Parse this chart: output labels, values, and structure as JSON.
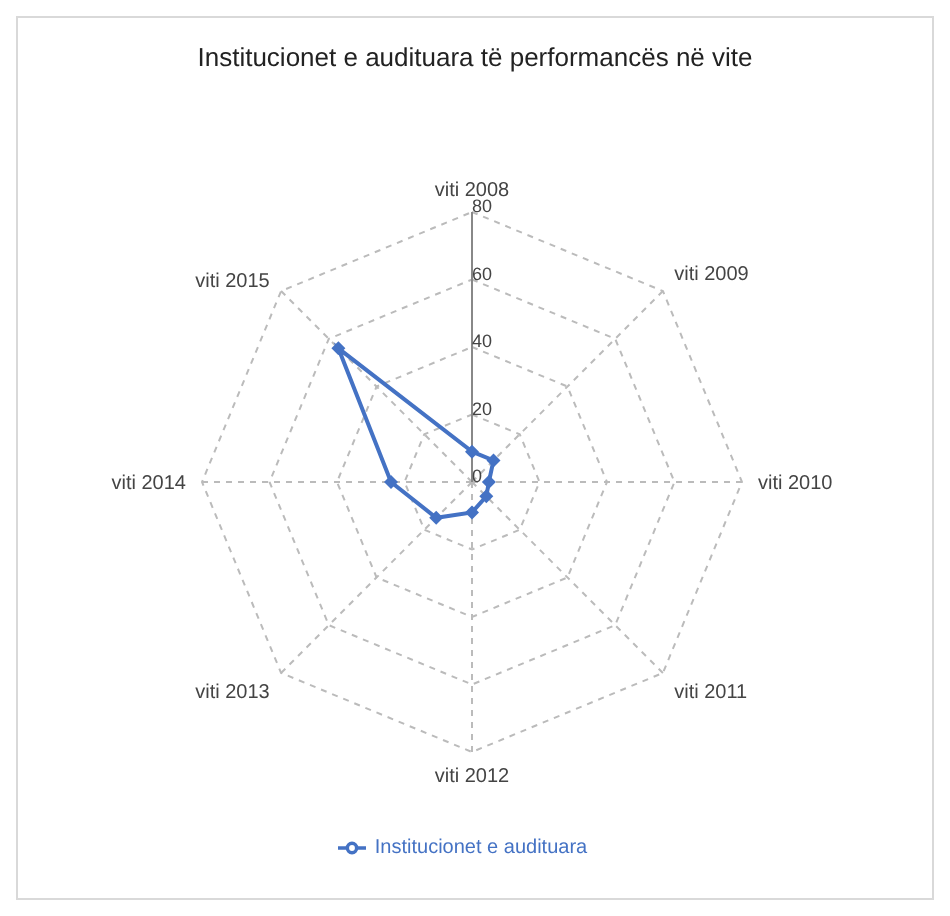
{
  "chart_data": {
    "type": "radar",
    "title": "Institucionet e audituara të performancës në vite",
    "categories": [
      "viti 2008",
      "viti 2009",
      "viti 2010",
      "viti 2011",
      "viti 2012",
      "viti 2013",
      "viti 2014",
      "viti 2015"
    ],
    "series": [
      {
        "name": "Institucionet e audituara",
        "color": "#4472c4",
        "values": [
          9,
          9,
          5,
          6,
          9,
          15,
          24,
          56
        ]
      }
    ],
    "ylim": [
      0,
      80
    ],
    "yticks": [
      0,
      20,
      40,
      60,
      80
    ],
    "marker": "diamond",
    "legend": "bottom"
  }
}
